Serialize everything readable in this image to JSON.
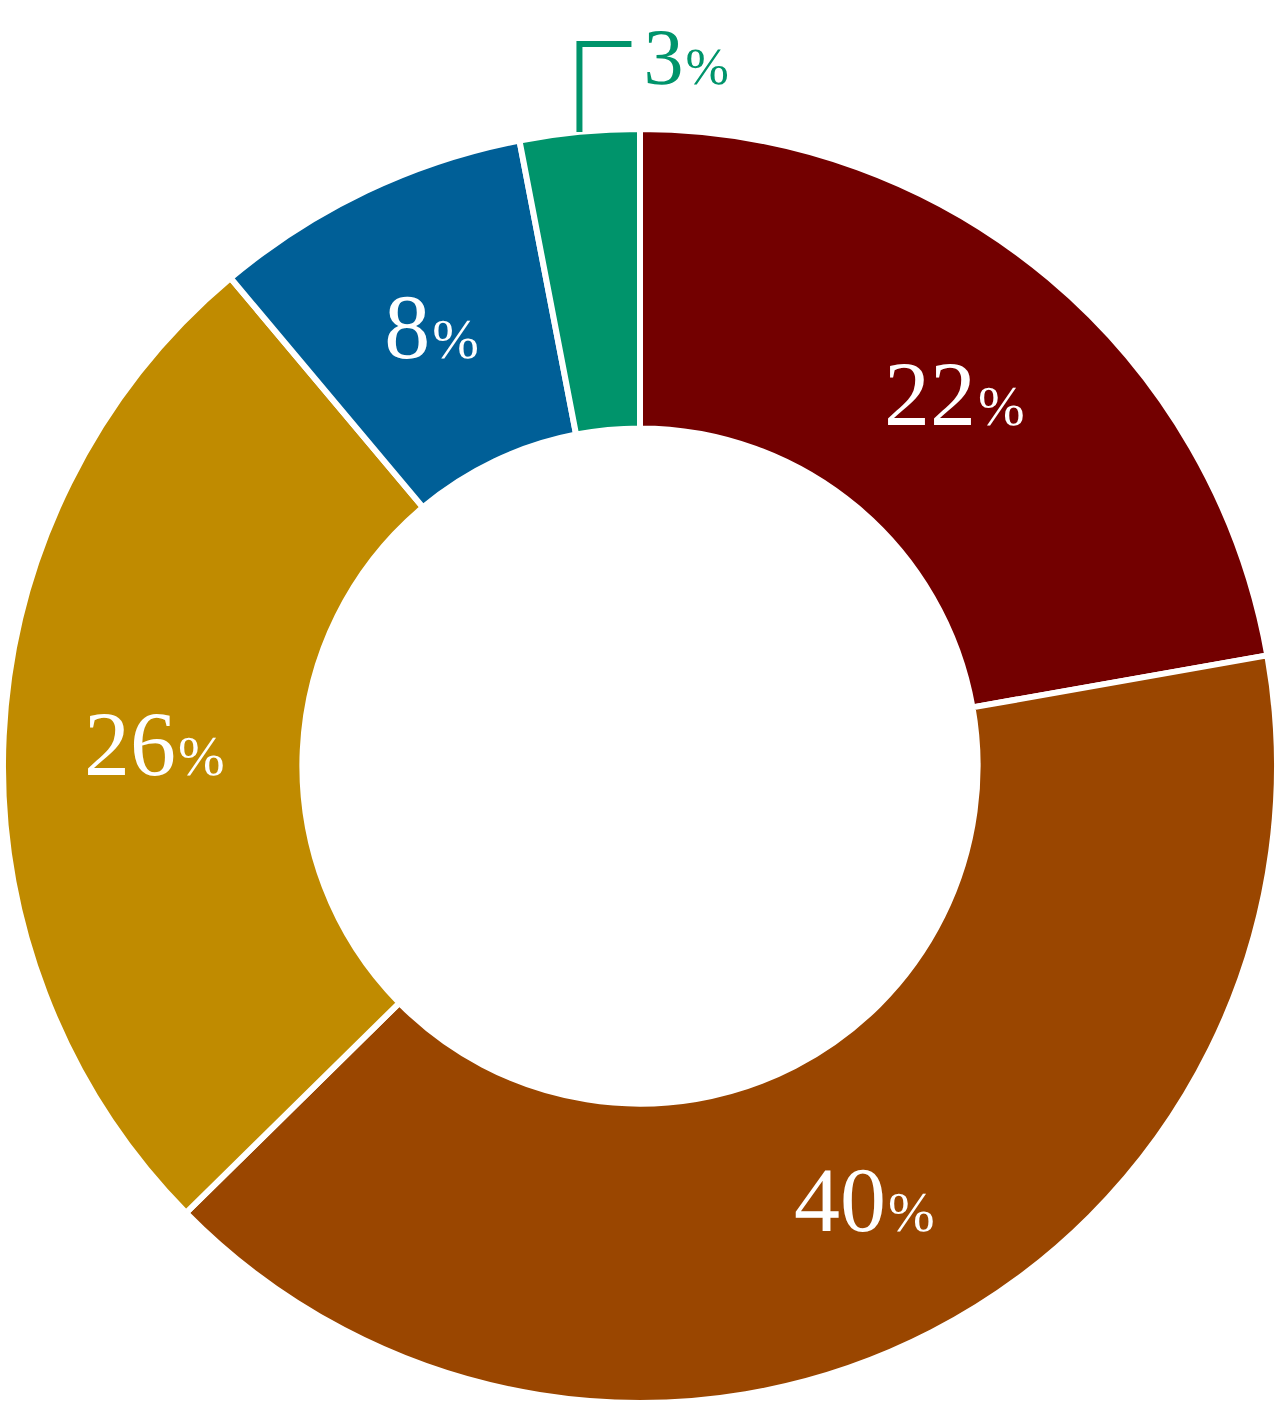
{
  "chart_data": {
    "type": "donut",
    "categories": [
      null,
      null,
      null,
      null,
      null
    ],
    "values": [
      22,
      40,
      26,
      8,
      3
    ],
    "colors": [
      "#730000",
      "#9a4600",
      "#c08b00",
      "#005f97",
      "#00946b"
    ],
    "value_labels": [
      "22%",
      "40%",
      "26%",
      "8%",
      "3%"
    ],
    "legend": false
  }
}
